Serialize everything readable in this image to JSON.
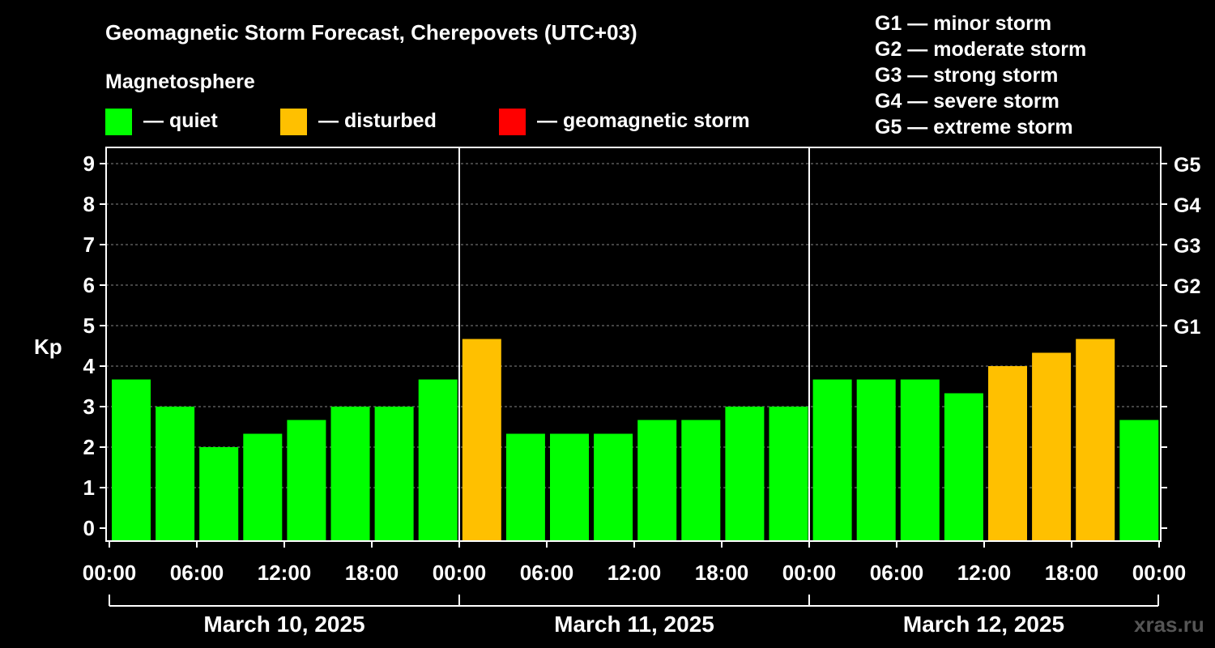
{
  "chart_data": {
    "type": "bar",
    "title": "Geomagnetic Storm Forecast, Cherepovets (UTC+03)",
    "subtitle": "Magnetosphere",
    "ylabel": "Kp",
    "ylim": [
      0,
      9
    ],
    "y_ticks": [
      "0",
      "1",
      "2",
      "3",
      "4",
      "5",
      "6",
      "7",
      "8",
      "9"
    ],
    "x_ticks": [
      "00:00",
      "06:00",
      "12:00",
      "18:00",
      "00:00",
      "06:00",
      "12:00",
      "18:00",
      "00:00",
      "06:00",
      "12:00",
      "18:00",
      "00:00"
    ],
    "days": [
      "March 10, 2025",
      "March 11, 2025",
      "March 12, 2025"
    ],
    "values": [
      3.67,
      3.0,
      2.0,
      2.33,
      2.67,
      3.0,
      3.0,
      3.67,
      4.67,
      2.33,
      2.33,
      2.33,
      2.67,
      2.67,
      3.0,
      3.0,
      3.67,
      3.67,
      3.67,
      3.33,
      4.0,
      4.33,
      4.67,
      2.67
    ],
    "status": [
      "quiet",
      "quiet",
      "quiet",
      "quiet",
      "quiet",
      "quiet",
      "quiet",
      "quiet",
      "disturbed",
      "quiet",
      "quiet",
      "quiet",
      "quiet",
      "quiet",
      "quiet",
      "quiet",
      "quiet",
      "quiet",
      "quiet",
      "quiet",
      "disturbed",
      "disturbed",
      "disturbed",
      "quiet"
    ],
    "colors": {
      "quiet": "#00ff00",
      "disturbed": "#ffc000",
      "storm": "#ff0000",
      "grid": "#888888"
    },
    "legend": [
      {
        "key": "quiet",
        "label": "— quiet"
      },
      {
        "key": "disturbed",
        "label": "— disturbed"
      },
      {
        "key": "storm",
        "label": "— geomagnetic storm"
      }
    ],
    "storm_scale": [
      {
        "kp": 5,
        "label": "G1"
      },
      {
        "kp": 6,
        "label": "G2"
      },
      {
        "kp": 7,
        "label": "G3"
      },
      {
        "kp": 8,
        "label": "G4"
      },
      {
        "kp": 9,
        "label": "G5"
      }
    ],
    "scale_key": [
      "G1 — minor storm",
      "G2 — moderate storm",
      "G3 — strong storm",
      "G4 — severe storm",
      "G5 — extreme storm"
    ],
    "grid": true,
    "watermark": "xras.ru"
  }
}
